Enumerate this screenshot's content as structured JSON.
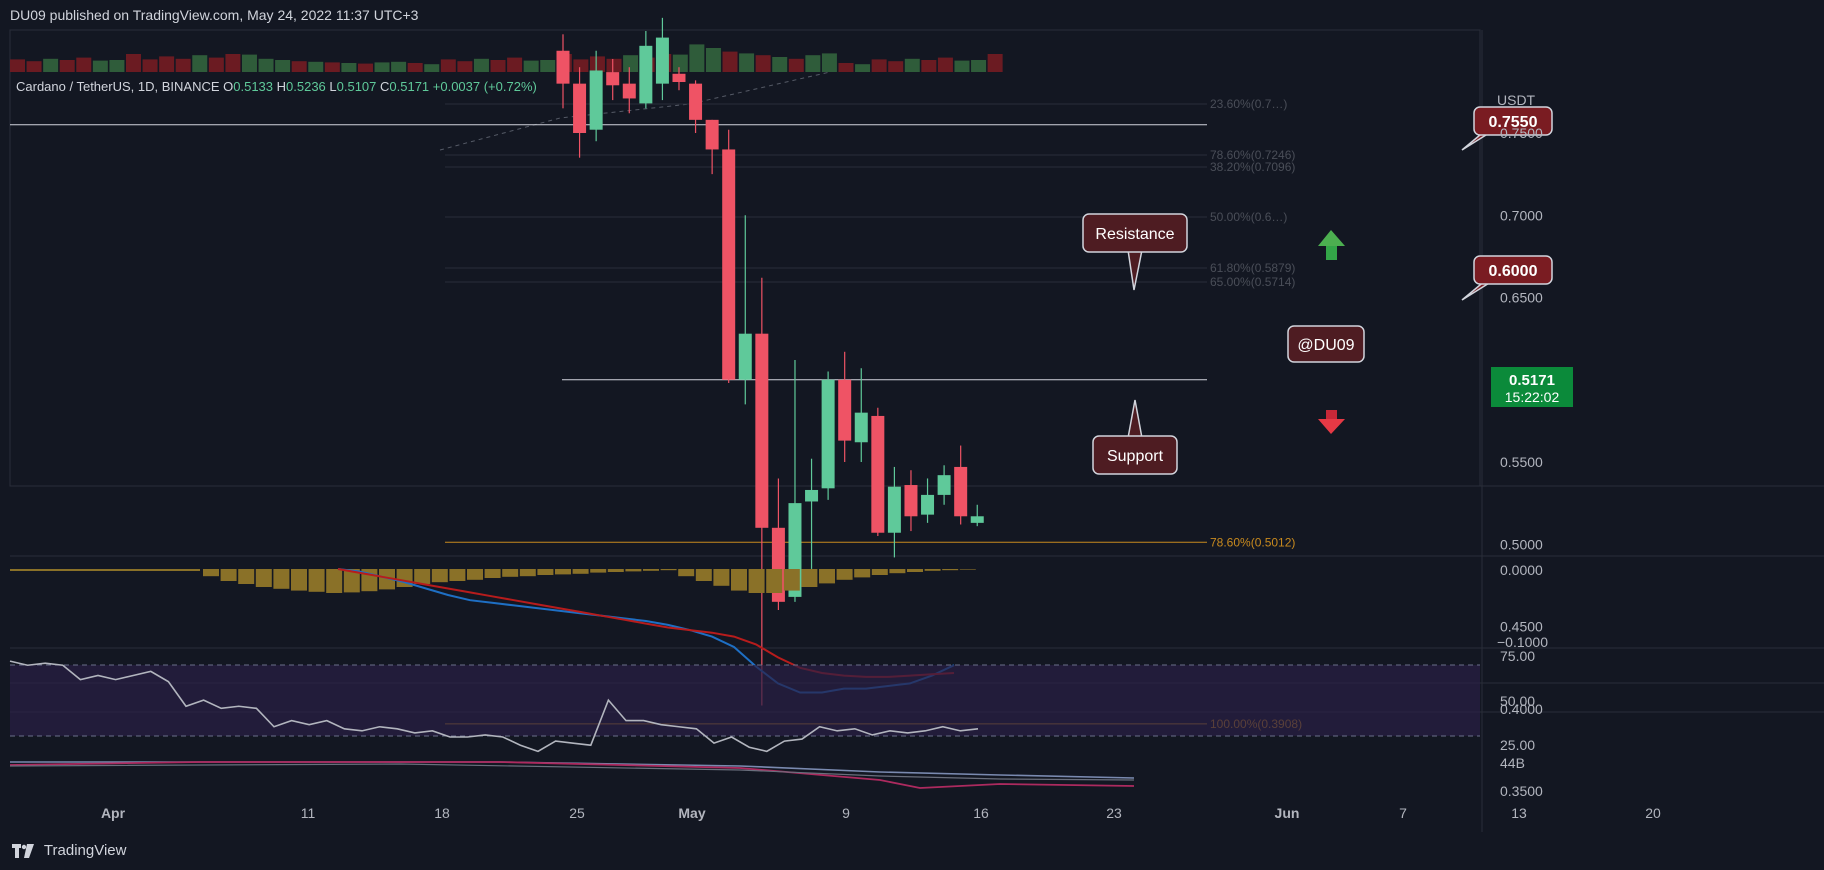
{
  "header": {
    "published": "DU09 published on TradingView.com, May 24, 2022 11:37 UTC+3"
  },
  "footer": {
    "brand": "TradingView"
  },
  "legend": {
    "symbol": "Cardano / TetherUS, 1D, BINANCE",
    "open_label": "O",
    "open": "0.5133",
    "high_label": "H",
    "high": "0.5236",
    "low_label": "L",
    "low": "0.5107",
    "close_label": "C",
    "close": "0.5171",
    "change": "+0.0037 (+0.72%)"
  },
  "price_axis": {
    "currency": "USDT",
    "ticks": [
      "0.7500",
      "0.7000",
      "0.6500",
      "0.6000",
      "0.5500",
      "0.5000",
      "0.4500",
      "0.4000",
      "0.3500"
    ],
    "current_price": "0.5171",
    "countdown": "15:22:02"
  },
  "macd_axis": [
    "0.0000",
    "−0.1000"
  ],
  "rsi_axis": [
    "75.00",
    "50.00",
    "25.00"
  ],
  "vol_axis": [
    "44B"
  ],
  "time_axis": [
    "Apr",
    "11",
    "18",
    "25",
    "May",
    "9",
    "16",
    "23",
    "Jun",
    "7",
    "13",
    "20"
  ],
  "annotations": {
    "level_high": "0.7550",
    "level_mid": "0.6000",
    "resistance": "Resistance",
    "support": "Support",
    "author": "@DU09"
  },
  "fib_labels": [
    "23.60%(0.7…)",
    "78.60%(0.7246)",
    "38.20%(0.7096)",
    "50.00%(0.6…)",
    "61.80%(0.5879)",
    "65.00%(0.5714)",
    "78.60%(0.5012)",
    "100.00%(0.3908)"
  ],
  "colors": {
    "background": "#131722",
    "bull": "#5fc99a",
    "bear": "#ef5365",
    "fib": "#c88a1e",
    "label_dark": "#7a1c22",
    "label_dark2": "#4e1c22",
    "macd": "#1e6fc4",
    "signal": "#b71c1c",
    "rsi": "#b2b5be",
    "rsi_band": "#2a1f45",
    "price_badge": "#0b8a3a"
  },
  "chart_data": {
    "type": "candlestick",
    "title": "Cardano / TetherUS, 1D, BINANCE",
    "ylabel": "USDT",
    "ylim": [
      0.33,
      0.82
    ],
    "candles": [
      {
        "date": "2022-04-30",
        "o": 0.8,
        "h": 0.81,
        "l": 0.765,
        "c": 0.78
      },
      {
        "date": "2022-05-01",
        "o": 0.78,
        "h": 0.79,
        "l": 0.735,
        "c": 0.75
      },
      {
        "date": "2022-05-02",
        "o": 0.752,
        "h": 0.8,
        "l": 0.745,
        "c": 0.788
      },
      {
        "date": "2022-05-03",
        "o": 0.787,
        "h": 0.795,
        "l": 0.77,
        "c": 0.779
      },
      {
        "date": "2022-05-04",
        "o": 0.78,
        "h": 0.79,
        "l": 0.762,
        "c": 0.771
      },
      {
        "date": "2022-05-05",
        "o": 0.768,
        "h": 0.812,
        "l": 0.765,
        "c": 0.803
      },
      {
        "date": "2022-05-06",
        "o": 0.78,
        "h": 0.82,
        "l": 0.77,
        "c": 0.808
      },
      {
        "date": "2022-05-07",
        "o": 0.786,
        "h": 0.79,
        "l": 0.776,
        "c": 0.781
      },
      {
        "date": "2022-05-08",
        "o": 0.78,
        "h": 0.782,
        "l": 0.75,
        "c": 0.758
      },
      {
        "date": "2022-05-09",
        "o": 0.758,
        "h": 0.758,
        "l": 0.725,
        "c": 0.74
      },
      {
        "date": "2022-05-10",
        "o": 0.74,
        "h": 0.752,
        "l": 0.598,
        "c": 0.6
      },
      {
        "date": "2022-05-11",
        "o": 0.6,
        "h": 0.7,
        "l": 0.585,
        "c": 0.628
      },
      {
        "date": "2022-05-12",
        "o": 0.628,
        "h": 0.662,
        "l": 0.402,
        "c": 0.51
      },
      {
        "date": "2022-05-13",
        "o": 0.51,
        "h": 0.54,
        "l": 0.46,
        "c": 0.465
      },
      {
        "date": "2022-05-14",
        "o": 0.468,
        "h": 0.612,
        "l": 0.465,
        "c": 0.525
      },
      {
        "date": "2022-05-15",
        "o": 0.526,
        "h": 0.552,
        "l": 0.485,
        "c": 0.533
      },
      {
        "date": "2022-05-16",
        "o": 0.534,
        "h": 0.605,
        "l": 0.527,
        "c": 0.6
      },
      {
        "date": "2022-05-17",
        "o": 0.6,
        "h": 0.617,
        "l": 0.55,
        "c": 0.563
      },
      {
        "date": "2022-05-18",
        "o": 0.562,
        "h": 0.607,
        "l": 0.55,
        "c": 0.58
      },
      {
        "date": "2022-05-19",
        "o": 0.578,
        "h": 0.583,
        "l": 0.505,
        "c": 0.507
      },
      {
        "date": "2022-05-20",
        "o": 0.507,
        "h": 0.547,
        "l": 0.492,
        "c": 0.535
      },
      {
        "date": "2022-05-21",
        "o": 0.536,
        "h": 0.545,
        "l": 0.508,
        "c": 0.517
      },
      {
        "date": "2022-05-22",
        "o": 0.518,
        "h": 0.54,
        "l": 0.513,
        "c": 0.53
      },
      {
        "date": "2022-05-23",
        "o": 0.53,
        "h": 0.548,
        "l": 0.524,
        "c": 0.542
      },
      {
        "date": "2022-05-24",
        "o": 0.547,
        "h": 0.56,
        "l": 0.512,
        "c": 0.517
      },
      {
        "date": "2022-05-25",
        "o": 0.513,
        "h": 0.524,
        "l": 0.511,
        "c": 0.517
      }
    ],
    "horizontal_levels": [
      0.755,
      0.6
    ],
    "fib_levels": [
      0.5012,
      0.3908
    ],
    "volume_heights": [
      0.55,
      0.4,
      0.6,
      0.5,
      0.7,
      0.45,
      0.5,
      1.0,
      0.55,
      0.8,
      0.6,
      0.9,
      0.7,
      1.0,
      0.95,
      0.6,
      0.5,
      0.4,
      0.35,
      0.3,
      0.25,
      0.2,
      0.3,
      0.35,
      0.25,
      0.15
    ],
    "volume_up": [
      false,
      false,
      true,
      false,
      false,
      true,
      true,
      false,
      false,
      false,
      false,
      true,
      false,
      false,
      true,
      true,
      true,
      false,
      true,
      false,
      true,
      false,
      true,
      true,
      false,
      true
    ],
    "macd_hist": [
      -0.012,
      -0.02,
      -0.025,
      -0.03,
      -0.033,
      -0.036,
      -0.038,
      -0.04,
      -0.039,
      -0.037,
      -0.034,
      -0.03,
      -0.025,
      -0.022,
      -0.02,
      -0.018,
      -0.015,
      -0.013,
      -0.012,
      -0.01,
      -0.009,
      -0.008,
      -0.006,
      -0.005,
      -0.004,
      -0.003,
      -0.002,
      -0.012,
      -0.02,
      -0.028,
      -0.036,
      -0.04,
      -0.04,
      -0.036,
      -0.03,
      -0.024,
      -0.018,
      -0.014,
      -0.01,
      -0.007,
      -0.005,
      -0.003,
      -0.002,
      -0.001
    ],
    "macd_line": [
      0.0,
      -0.002,
      -0.006,
      -0.01,
      -0.015,
      -0.02,
      -0.024,
      -0.026,
      -0.028,
      -0.03,
      -0.032,
      -0.034,
      -0.036,
      -0.038,
      -0.04,
      -0.043,
      -0.047,
      -0.052,
      -0.06,
      -0.075,
      -0.088,
      -0.095,
      -0.095,
      -0.092,
      -0.092,
      -0.09,
      -0.088,
      -0.082,
      -0.074
    ],
    "signal_line": [
      0.0,
      -0.003,
      -0.006,
      -0.009,
      -0.012,
      -0.015,
      -0.018,
      -0.021,
      -0.024,
      -0.027,
      -0.03,
      -0.033,
      -0.036,
      -0.039,
      -0.042,
      -0.045,
      -0.047,
      -0.049,
      -0.052,
      -0.058,
      -0.068,
      -0.076,
      -0.08,
      -0.082,
      -0.083,
      -0.083,
      -0.082,
      -0.081,
      -0.08
    ],
    "rsi": [
      77,
      75,
      76,
      75,
      68,
      70,
      68,
      70,
      72,
      67,
      55,
      58,
      54,
      55,
      54,
      45,
      48,
      46,
      48,
      44,
      43,
      45,
      44,
      42,
      43,
      40,
      40,
      41,
      40,
      36,
      33,
      38,
      37,
      36,
      58,
      48,
      48,
      46,
      45,
      44,
      37,
      40,
      35,
      33,
      38,
      39,
      45,
      43,
      44,
      41,
      43,
      42,
      43,
      45,
      43,
      44
    ]
  }
}
